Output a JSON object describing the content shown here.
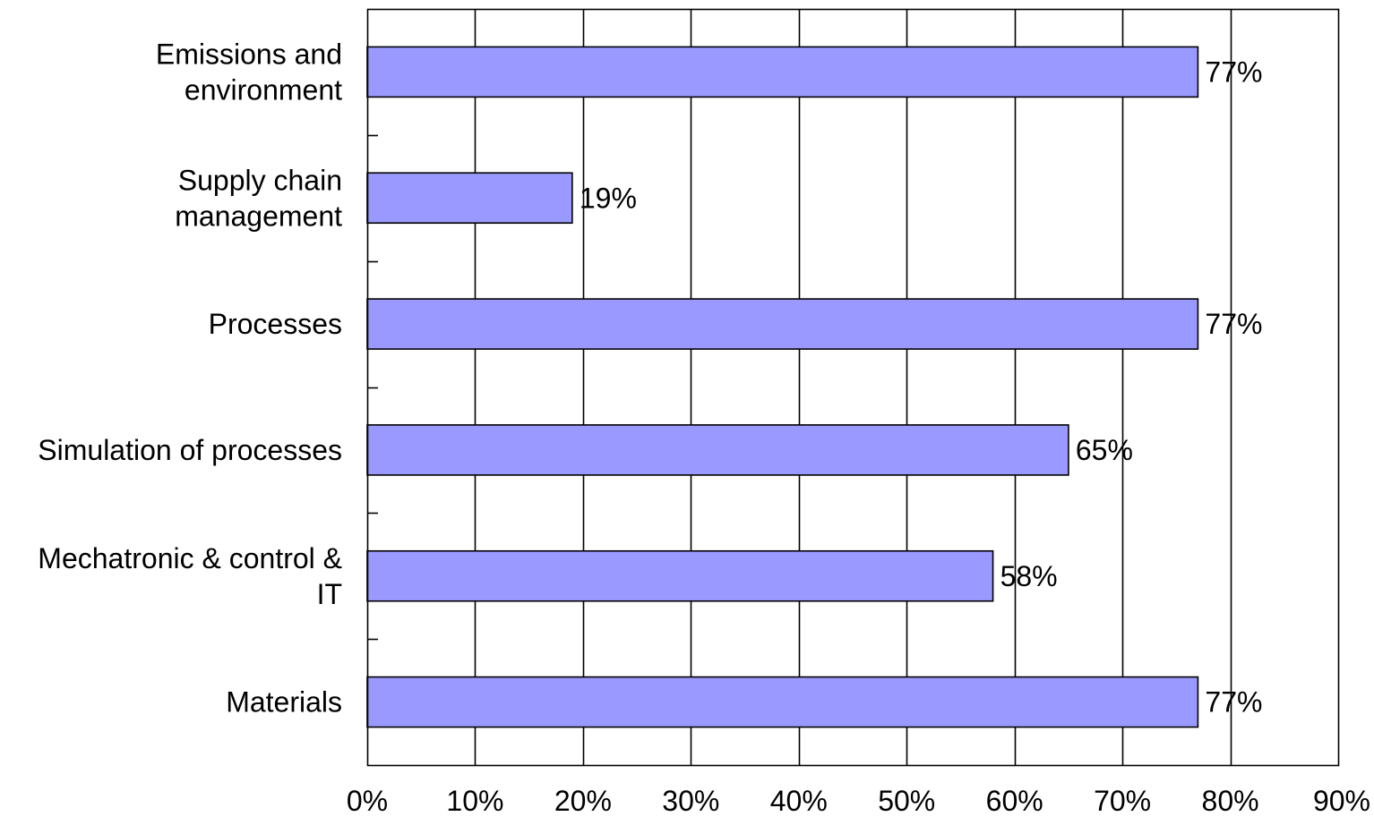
{
  "chart_data": {
    "type": "bar",
    "orientation": "horizontal",
    "categories": [
      "Emissions and environment",
      "Supply chain management",
      "Processes",
      "Simulation of processes",
      "Mechatronic & control & IT",
      "Materials"
    ],
    "category_label_lines": [
      [
        "Emissions and",
        "environment"
      ],
      [
        "Supply  chain",
        "management"
      ],
      [
        "Processes"
      ],
      [
        "Simulation of processes"
      ],
      [
        "Mechatronic & control &",
        "IT"
      ],
      [
        "Materials"
      ]
    ],
    "values": [
      77,
      19,
      77,
      65,
      58,
      77
    ],
    "data_labels": [
      "77%",
      "19%",
      "77%",
      "65%",
      "58%",
      "77%"
    ],
    "xlim": [
      0,
      90
    ],
    "x_ticks": [
      0,
      10,
      20,
      30,
      40,
      50,
      60,
      70,
      80,
      90
    ],
    "x_tick_labels": [
      "0%",
      "10%",
      "20%",
      "30%",
      "40%",
      "50%",
      "60%",
      "70%",
      "80%",
      "90%"
    ],
    "title": "",
    "xlabel": "",
    "ylabel": "",
    "grid": true,
    "legend": "none",
    "colors": {
      "bar_fill": "#9999ff",
      "bar_stroke": "#000000",
      "grid": "#000000",
      "text": "#000000",
      "background": "#ffffff"
    }
  }
}
